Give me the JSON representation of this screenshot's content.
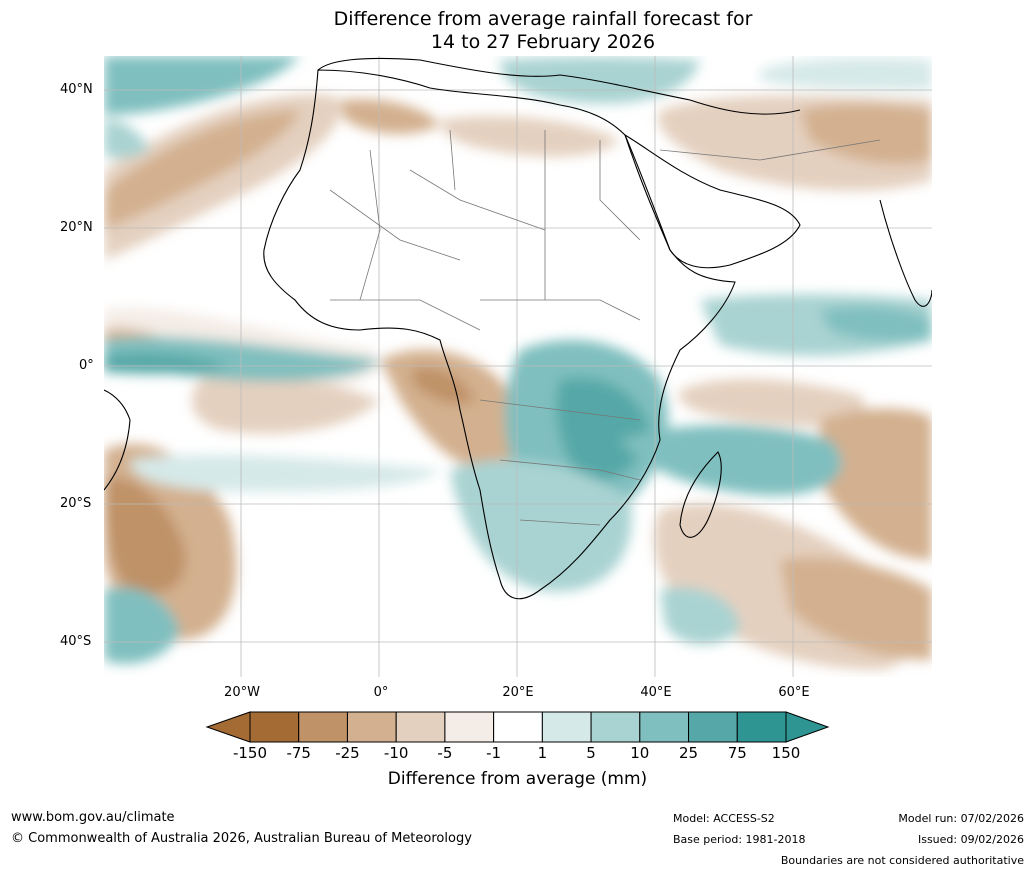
{
  "title": {
    "line1": "Difference from average rainfall forecast for",
    "line2": "14 to 27 February 2026"
  },
  "map": {
    "lat_labels": [
      "40°N",
      "20°N",
      "0°",
      "20°S",
      "40°S"
    ],
    "lon_labels": [
      "20°W",
      "0°",
      "20°E",
      "40°E",
      "60°E"
    ]
  },
  "legend": {
    "ticks": [
      "-150",
      "-75",
      "-25",
      "-10",
      "-5",
      "-1",
      "1",
      "5",
      "10",
      "25",
      "75",
      "150"
    ],
    "colors": [
      "#a46b34",
      "#bf9268",
      "#d3b08f",
      "#e4d0bf",
      "#f4ece6",
      "#ffffff",
      "#d5e9e8",
      "#a9d3d2",
      "#80bfbf",
      "#56a8a8",
      "#2e9593"
    ],
    "under_color": "#a46b34",
    "over_color": "#2e9593",
    "label": "Difference from average (mm)"
  },
  "footer": {
    "website": "www.bom.gov.au/climate",
    "copyright": "© Commonwealth of Australia 2026, Australian Bureau of Meteorology",
    "model": "Model: ACCESS-S2",
    "base_period": "Base period: 1981-2018",
    "model_run": "Model run: 07/02/2026",
    "issued": "Issued: 09/02/2026",
    "disclaimer": "Boundaries are not considered authoritative"
  }
}
